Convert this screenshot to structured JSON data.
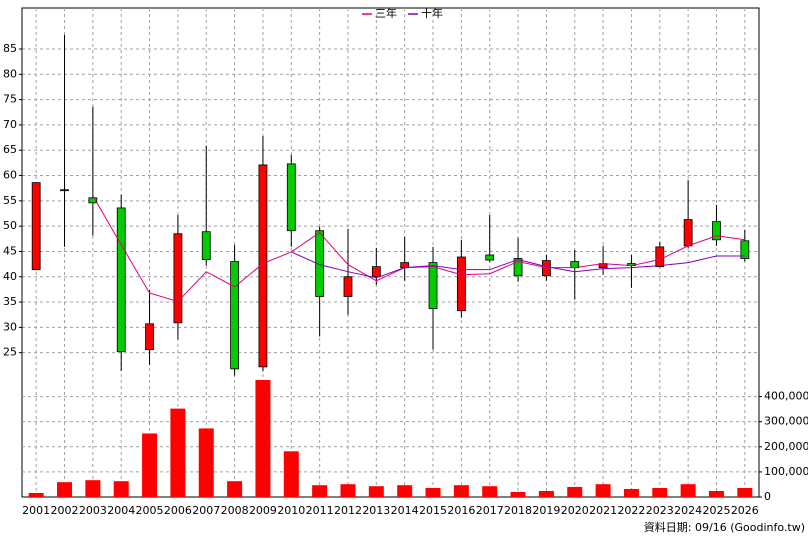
{
  "chart_data": {
    "type": "candlestick",
    "categories": [
      "2001",
      "2002",
      "2003",
      "2004",
      "2005",
      "2006",
      "2007",
      "2008",
      "2009",
      "2010",
      "2011",
      "2012",
      "2013",
      "2014",
      "2015",
      "2016",
      "2017",
      "2018",
      "2019",
      "2020",
      "2021",
      "2022",
      "2023",
      "2024",
      "2025",
      "2026"
    ],
    "open": [
      41.4,
      57.2,
      55.6,
      53.6,
      25.6,
      30.9,
      48.9,
      43.0,
      22.2,
      62.3,
      49.1,
      36.1,
      40.0,
      41.8,
      42.8,
      33.3,
      44.3,
      43.6,
      40.2,
      43.0,
      41.8,
      42.6,
      42.0,
      46.1,
      50.9,
      47.1
    ],
    "high": [
      58.6,
      87.8,
      73.6,
      56.2,
      37.4,
      52.2,
      65.9,
      46.3,
      67.8,
      64.1,
      49.9,
      49.5,
      45.7,
      47.9,
      45.9,
      47.3,
      52.2,
      47.7,
      44.3,
      45.3,
      46.1,
      44.3,
      46.9,
      59.1,
      54.2,
      49.3
    ],
    "low": [
      41.4,
      45.9,
      48.1,
      21.4,
      22.6,
      27.6,
      42.2,
      20.5,
      21.3,
      45.9,
      28.2,
      32.5,
      38.4,
      39.2,
      25.6,
      31.9,
      42.9,
      39.0,
      39.2,
      35.5,
      40.4,
      37.8,
      41.8,
      45.7,
      46.1,
      43.0
    ],
    "close": [
      58.6,
      57.0,
      54.6,
      25.2,
      30.7,
      48.5,
      43.4,
      21.8,
      62.1,
      49.1,
      36.1,
      40.0,
      42.0,
      42.8,
      33.7,
      43.9,
      43.3,
      40.2,
      43.2,
      41.8,
      42.6,
      42.2,
      45.9,
      51.3,
      47.3,
      43.6
    ],
    "up_color": "#ff0000",
    "down_color": "#00cc00",
    "series": [
      {
        "name": "三年",
        "color": "#e0007a",
        "values": [
          null,
          null,
          56.0,
          46.3,
          36.8,
          35.1,
          41.0,
          38.0,
          42.6,
          44.9,
          48.7,
          42.4,
          39.2,
          41.8,
          42.0,
          40.4,
          40.6,
          43.0,
          41.8,
          41.8,
          42.6,
          42.2,
          43.4,
          46.1,
          48.1,
          47.3
        ]
      },
      {
        "name": "十年",
        "color": "#8000c0",
        "values": [
          null,
          null,
          null,
          null,
          null,
          null,
          null,
          null,
          null,
          44.9,
          42.4,
          41.0,
          39.8,
          41.8,
          42.2,
          41.4,
          41.4,
          43.4,
          42.0,
          41.0,
          41.6,
          41.8,
          42.2,
          42.8,
          44.1,
          44.1
        ]
      }
    ],
    "volume": {
      "color": "#ff0000",
      "axis": "y2",
      "values": [
        16000,
        59000,
        67000,
        63000,
        253000,
        352000,
        273000,
        63000,
        466000,
        182000,
        47000,
        51000,
        43000,
        47000,
        36000,
        47000,
        43000,
        20000,
        24000,
        40000,
        51000,
        32000,
        36000,
        51000,
        24000,
        36000
      ]
    },
    "ylim": [
      19.6,
      93.1
    ],
    "yticks": [
      25,
      30,
      35,
      40,
      45,
      50,
      55,
      60,
      65,
      70,
      75,
      80,
      85
    ],
    "y2lim": [
      0,
      466000
    ],
    "y2ticks": [
      0,
      {
        "value": 100000,
        "label": "100,000"
      },
      {
        "value": 200000,
        "label": "200,000"
      },
      {
        "value": 300000,
        "label": "300,000"
      },
      {
        "value": 400000,
        "label": "400,000"
      }
    ],
    "grid": true,
    "source": "資料日期: 09/16 (Goodinfo.tw)"
  }
}
